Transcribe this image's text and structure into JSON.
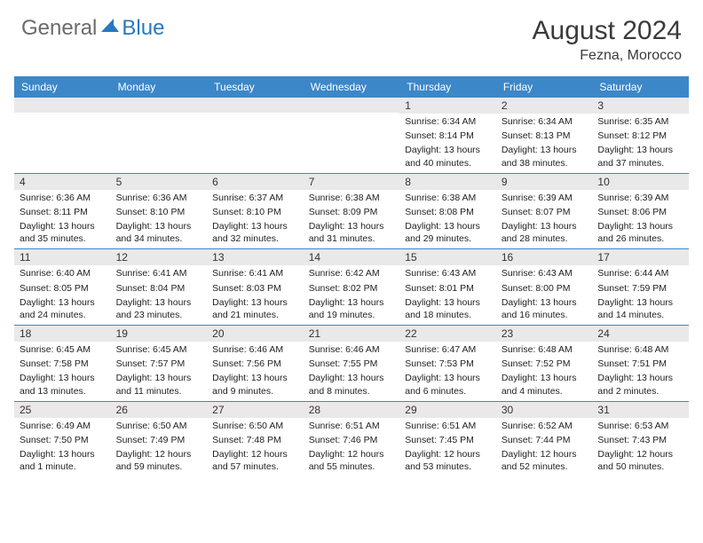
{
  "brand": {
    "part1": "General",
    "part2": "Blue"
  },
  "header": {
    "month": "August 2024",
    "location": "Fezna, Morocco"
  },
  "colors": {
    "header_bar": "#3c87c8",
    "daynum_bg": "#e9e9e9",
    "text": "#222222",
    "border": "#3c87c8"
  },
  "day_names": [
    "Sunday",
    "Monday",
    "Tuesday",
    "Wednesday",
    "Thursday",
    "Friday",
    "Saturday"
  ],
  "weeks": [
    [
      null,
      null,
      null,
      null,
      {
        "n": "1",
        "sr": "6:34 AM",
        "ss": "8:14 PM",
        "dl": "13 hours and 40 minutes."
      },
      {
        "n": "2",
        "sr": "6:34 AM",
        "ss": "8:13 PM",
        "dl": "13 hours and 38 minutes."
      },
      {
        "n": "3",
        "sr": "6:35 AM",
        "ss": "8:12 PM",
        "dl": "13 hours and 37 minutes."
      }
    ],
    [
      {
        "n": "4",
        "sr": "6:36 AM",
        "ss": "8:11 PM",
        "dl": "13 hours and 35 minutes."
      },
      {
        "n": "5",
        "sr": "6:36 AM",
        "ss": "8:10 PM",
        "dl": "13 hours and 34 minutes."
      },
      {
        "n": "6",
        "sr": "6:37 AM",
        "ss": "8:10 PM",
        "dl": "13 hours and 32 minutes."
      },
      {
        "n": "7",
        "sr": "6:38 AM",
        "ss": "8:09 PM",
        "dl": "13 hours and 31 minutes."
      },
      {
        "n": "8",
        "sr": "6:38 AM",
        "ss": "8:08 PM",
        "dl": "13 hours and 29 minutes."
      },
      {
        "n": "9",
        "sr": "6:39 AM",
        "ss": "8:07 PM",
        "dl": "13 hours and 28 minutes."
      },
      {
        "n": "10",
        "sr": "6:39 AM",
        "ss": "8:06 PM",
        "dl": "13 hours and 26 minutes."
      }
    ],
    [
      {
        "n": "11",
        "sr": "6:40 AM",
        "ss": "8:05 PM",
        "dl": "13 hours and 24 minutes."
      },
      {
        "n": "12",
        "sr": "6:41 AM",
        "ss": "8:04 PM",
        "dl": "13 hours and 23 minutes."
      },
      {
        "n": "13",
        "sr": "6:41 AM",
        "ss": "8:03 PM",
        "dl": "13 hours and 21 minutes."
      },
      {
        "n": "14",
        "sr": "6:42 AM",
        "ss": "8:02 PM",
        "dl": "13 hours and 19 minutes."
      },
      {
        "n": "15",
        "sr": "6:43 AM",
        "ss": "8:01 PM",
        "dl": "13 hours and 18 minutes."
      },
      {
        "n": "16",
        "sr": "6:43 AM",
        "ss": "8:00 PM",
        "dl": "13 hours and 16 minutes."
      },
      {
        "n": "17",
        "sr": "6:44 AM",
        "ss": "7:59 PM",
        "dl": "13 hours and 14 minutes."
      }
    ],
    [
      {
        "n": "18",
        "sr": "6:45 AM",
        "ss": "7:58 PM",
        "dl": "13 hours and 13 minutes."
      },
      {
        "n": "19",
        "sr": "6:45 AM",
        "ss": "7:57 PM",
        "dl": "13 hours and 11 minutes."
      },
      {
        "n": "20",
        "sr": "6:46 AM",
        "ss": "7:56 PM",
        "dl": "13 hours and 9 minutes."
      },
      {
        "n": "21",
        "sr": "6:46 AM",
        "ss": "7:55 PM",
        "dl": "13 hours and 8 minutes."
      },
      {
        "n": "22",
        "sr": "6:47 AM",
        "ss": "7:53 PM",
        "dl": "13 hours and 6 minutes."
      },
      {
        "n": "23",
        "sr": "6:48 AM",
        "ss": "7:52 PM",
        "dl": "13 hours and 4 minutes."
      },
      {
        "n": "24",
        "sr": "6:48 AM",
        "ss": "7:51 PM",
        "dl": "13 hours and 2 minutes."
      }
    ],
    [
      {
        "n": "25",
        "sr": "6:49 AM",
        "ss": "7:50 PM",
        "dl": "13 hours and 1 minute."
      },
      {
        "n": "26",
        "sr": "6:50 AM",
        "ss": "7:49 PM",
        "dl": "12 hours and 59 minutes."
      },
      {
        "n": "27",
        "sr": "6:50 AM",
        "ss": "7:48 PM",
        "dl": "12 hours and 57 minutes."
      },
      {
        "n": "28",
        "sr": "6:51 AM",
        "ss": "7:46 PM",
        "dl": "12 hours and 55 minutes."
      },
      {
        "n": "29",
        "sr": "6:51 AM",
        "ss": "7:45 PM",
        "dl": "12 hours and 53 minutes."
      },
      {
        "n": "30",
        "sr": "6:52 AM",
        "ss": "7:44 PM",
        "dl": "12 hours and 52 minutes."
      },
      {
        "n": "31",
        "sr": "6:53 AM",
        "ss": "7:43 PM",
        "dl": "12 hours and 50 minutes."
      }
    ]
  ],
  "labels": {
    "sunrise": "Sunrise: ",
    "sunset": "Sunset: ",
    "daylight": "Daylight: "
  }
}
